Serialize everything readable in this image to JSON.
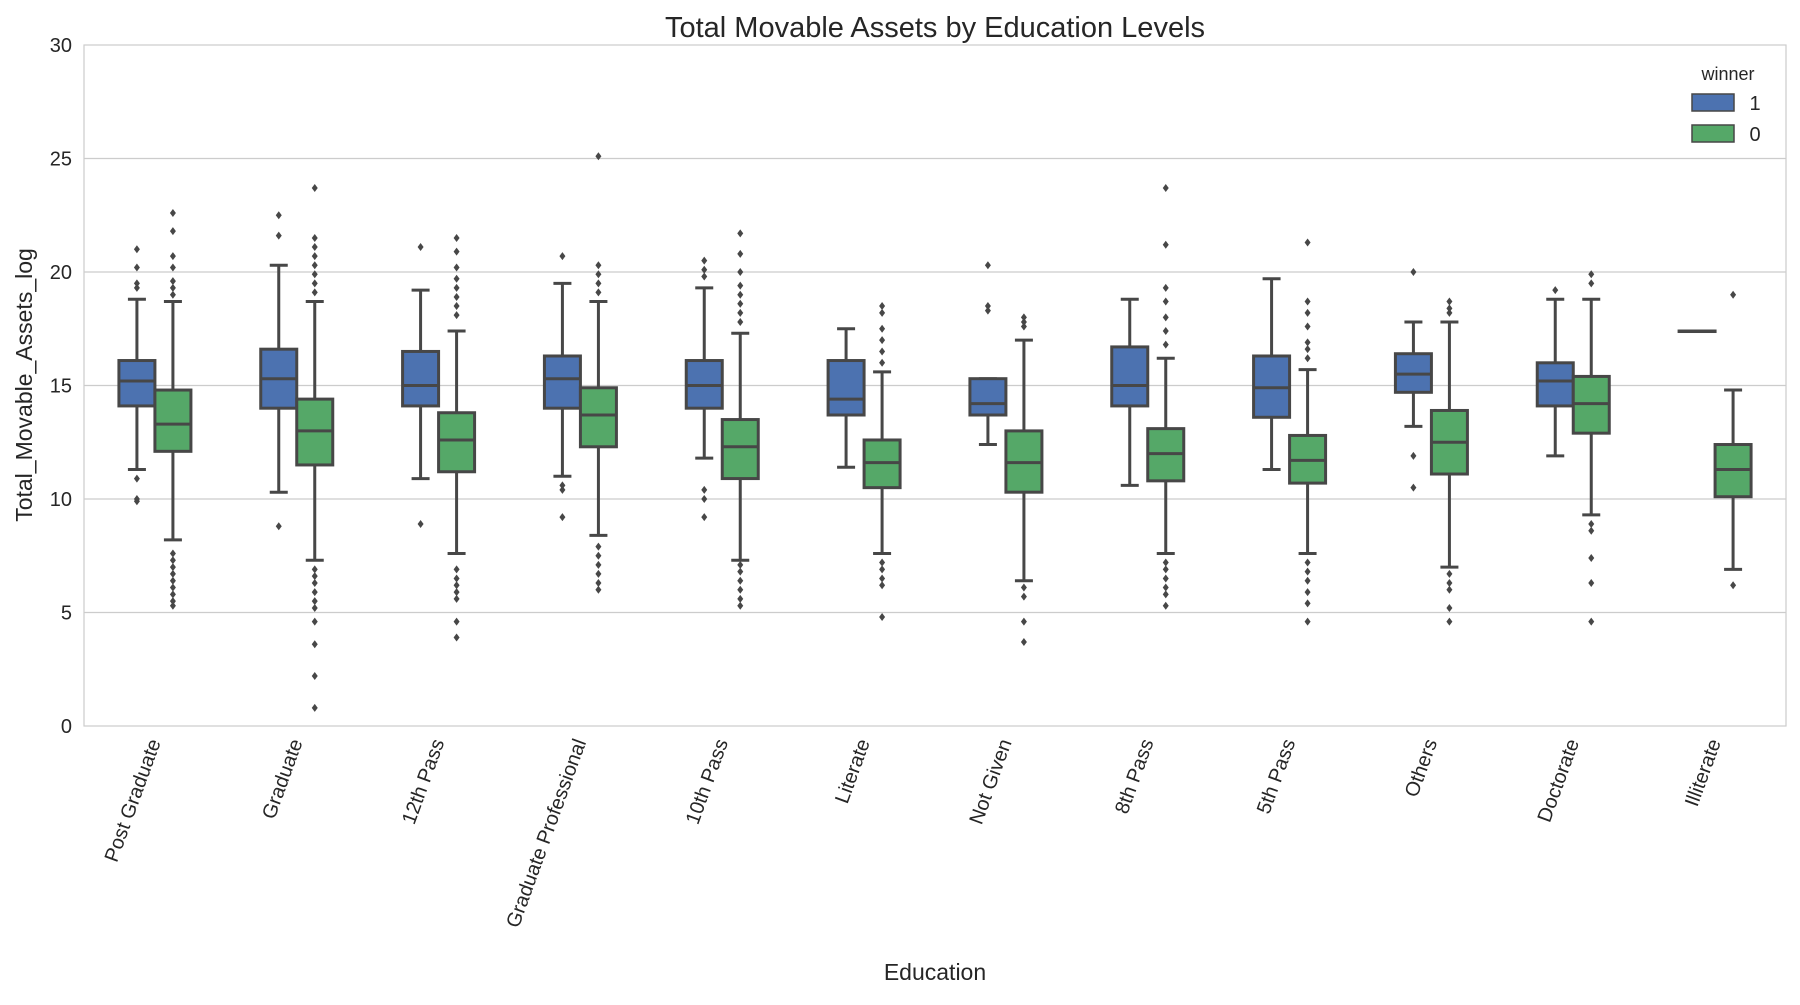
{
  "chart_data": {
    "type": "box",
    "title": "Total Movable Assets by Education Levels",
    "xlabel": "Education",
    "ylabel": "Total_Movable_Assets_log",
    "ylim": [
      0,
      30
    ],
    "yticks": [
      0,
      5,
      10,
      15,
      20,
      25,
      30
    ],
    "grid": "horizontal",
    "legend": {
      "title": "winner",
      "placement": "top-right",
      "entries": [
        {
          "label": "1",
          "color": "#4c72b0"
        },
        {
          "label": "0",
          "color": "#55a868"
        }
      ]
    },
    "categories": [
      "Post Graduate",
      "Graduate",
      "12th Pass",
      "Graduate Professional",
      "10th Pass",
      "Literate",
      "Not Given",
      "8th Pass",
      "5th Pass",
      "Others",
      "Doctorate",
      "Illiterate"
    ],
    "series": [
      {
        "name": "1",
        "color": "#4c72b0",
        "boxes": [
          {
            "whislo": 11.3,
            "q1": 14.1,
            "med": 15.2,
            "q3": 16.1,
            "whishi": 18.8,
            "fliers": [
              10.0,
              9.9,
              10.9,
              19.3,
              19.5,
              20.2,
              21.0
            ]
          },
          {
            "whislo": 10.3,
            "q1": 14.0,
            "med": 15.3,
            "q3": 16.6,
            "whishi": 20.3,
            "fliers": [
              8.8,
              21.6,
              22.5
            ]
          },
          {
            "whislo": 10.9,
            "q1": 14.1,
            "med": 15.0,
            "q3": 16.5,
            "whishi": 19.2,
            "fliers": [
              8.9,
              21.1
            ]
          },
          {
            "whislo": 11.0,
            "q1": 14.0,
            "med": 15.3,
            "q3": 16.3,
            "whishi": 19.5,
            "fliers": [
              10.4,
              10.6,
              9.2,
              20.7
            ]
          },
          {
            "whislo": 11.8,
            "q1": 14.0,
            "med": 15.0,
            "q3": 16.1,
            "whishi": 19.3,
            "fliers": [
              10.4,
              10.0,
              9.2,
              19.8,
              20.1,
              20.5
            ]
          },
          {
            "whislo": 11.4,
            "q1": 13.7,
            "med": 14.4,
            "q3": 16.1,
            "whishi": 17.5,
            "fliers": []
          },
          {
            "whislo": 12.4,
            "q1": 13.7,
            "med": 14.2,
            "q3": 15.3,
            "whishi": 15.3,
            "fliers": [
              18.3,
              18.5,
              20.3
            ]
          },
          {
            "whislo": 10.6,
            "q1": 14.1,
            "med": 15.0,
            "q3": 16.7,
            "whishi": 18.8,
            "fliers": []
          },
          {
            "whislo": 11.3,
            "q1": 13.6,
            "med": 14.9,
            "q3": 16.3,
            "whishi": 19.7,
            "fliers": []
          },
          {
            "whislo": 13.2,
            "q1": 14.7,
            "med": 15.5,
            "q3": 16.4,
            "whishi": 17.8,
            "fliers": [
              11.9,
              10.5,
              20.0
            ]
          },
          {
            "whislo": 11.9,
            "q1": 14.1,
            "med": 15.2,
            "q3": 16.0,
            "whishi": 18.8,
            "fliers": [
              19.2
            ]
          },
          {
            "whislo": 17.4,
            "q1": 17.4,
            "med": 17.4,
            "q3": 17.4,
            "whishi": 17.4,
            "fliers": []
          }
        ]
      },
      {
        "name": "0",
        "color": "#55a868",
        "boxes": [
          {
            "whislo": 8.2,
            "q1": 12.1,
            "med": 13.3,
            "q3": 14.8,
            "whishi": 18.7,
            "fliers": [
              5.3,
              5.5,
              5.8,
              6.1,
              6.4,
              6.7,
              7.0,
              7.3,
              7.6,
              19.0,
              19.3,
              19.6,
              20.2,
              20.7,
              21.8,
              22.6
            ]
          },
          {
            "whislo": 7.3,
            "q1": 11.5,
            "med": 13.0,
            "q3": 14.4,
            "whishi": 18.7,
            "fliers": [
              0.8,
              2.2,
              3.6,
              4.6,
              5.2,
              5.5,
              5.9,
              6.3,
              6.6,
              6.9,
              19.1,
              19.5,
              19.9,
              20.3,
              20.7,
              21.1,
              21.5,
              23.7
            ]
          },
          {
            "whislo": 7.6,
            "q1": 11.2,
            "med": 12.6,
            "q3": 13.8,
            "whishi": 17.4,
            "fliers": [
              3.9,
              4.6,
              5.6,
              5.9,
              6.2,
              6.5,
              6.9,
              18.1,
              18.5,
              18.9,
              19.3,
              19.7,
              20.2,
              20.9,
              21.5
            ]
          },
          {
            "whislo": 8.4,
            "q1": 12.3,
            "med": 13.7,
            "q3": 14.9,
            "whishi": 18.7,
            "fliers": [
              6.0,
              6.3,
              6.7,
              7.1,
              7.5,
              7.9,
              19.1,
              19.5,
              19.9,
              20.3,
              25.1
            ]
          },
          {
            "whislo": 7.3,
            "q1": 10.9,
            "med": 12.3,
            "q3": 13.5,
            "whishi": 17.3,
            "fliers": [
              5.3,
              5.6,
              6.0,
              6.4,
              6.8,
              7.1,
              17.8,
              18.2,
              18.6,
              19.0,
              19.4,
              20.0,
              20.8,
              21.7
            ]
          },
          {
            "whislo": 7.6,
            "q1": 10.5,
            "med": 11.6,
            "q3": 12.6,
            "whishi": 15.6,
            "fliers": [
              4.8,
              6.2,
              6.5,
              6.9,
              7.2,
              16.0,
              16.5,
              17.0,
              17.5,
              18.2,
              18.5
            ]
          },
          {
            "whislo": 6.4,
            "q1": 10.3,
            "med": 11.6,
            "q3": 13.0,
            "whishi": 17.0,
            "fliers": [
              3.7,
              4.6,
              5.7,
              6.1,
              17.6,
              17.8,
              18.0
            ]
          },
          {
            "whislo": 7.6,
            "q1": 10.8,
            "med": 12.0,
            "q3": 13.1,
            "whishi": 16.2,
            "fliers": [
              5.3,
              5.8,
              6.1,
              6.5,
              6.9,
              7.2,
              16.8,
              17.4,
              18.0,
              18.7,
              19.3,
              21.2,
              23.7
            ]
          },
          {
            "whislo": 7.6,
            "q1": 10.7,
            "med": 11.7,
            "q3": 12.8,
            "whishi": 15.7,
            "fliers": [
              4.6,
              5.4,
              5.9,
              6.4,
              6.8,
              7.2,
              16.2,
              16.6,
              16.9,
              17.6,
              18.2,
              18.7,
              21.3
            ]
          },
          {
            "whislo": 7.0,
            "q1": 11.1,
            "med": 12.5,
            "q3": 13.9,
            "whishi": 17.8,
            "fliers": [
              4.6,
              5.2,
              6.0,
              6.3,
              6.7,
              18.2,
              18.4,
              18.7
            ]
          },
          {
            "whislo": 9.3,
            "q1": 12.9,
            "med": 14.2,
            "q3": 15.4,
            "whishi": 18.8,
            "fliers": [
              4.6,
              6.3,
              7.4,
              8.6,
              8.9,
              19.5,
              19.9
            ]
          },
          {
            "whislo": 6.9,
            "q1": 10.1,
            "med": 11.3,
            "q3": 12.4,
            "whishi": 14.8,
            "fliers": [
              6.2,
              19.0
            ]
          }
        ]
      }
    ]
  }
}
